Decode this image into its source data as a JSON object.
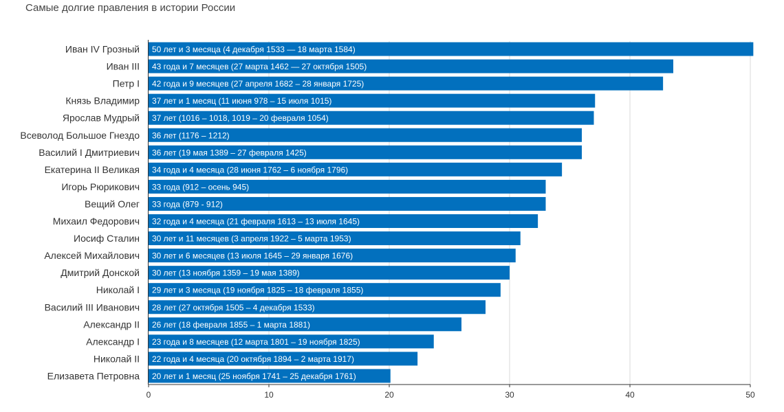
{
  "chart_data": {
    "type": "bar",
    "orientation": "horizontal",
    "title": "Самые долгие правления в истории России",
    "xlabel": "",
    "ylabel": "",
    "xlim": [
      0,
      50
    ],
    "xticks": [
      0,
      10,
      20,
      30,
      40,
      50
    ],
    "grid": true,
    "bar_color": "#0270be",
    "categories": [
      "Иван IV Грозный",
      "Иван III",
      "Петр I",
      "Князь Владимир",
      "Ярослав Мудрый",
      "Всеволод Большое Гнездо",
      "Василий I Дмитриевич",
      "Екатерина II Великая",
      "Игорь Рюрикович",
      "Вещий Олег",
      "Михаил Федорович",
      "Иосиф Сталин",
      "Алексей Михайлович",
      "Дмитрий Донской",
      "Николай I",
      "Василий III Иванович",
      "Александр II",
      "Александр I",
      "Николай II",
      "Елизавета Петровна"
    ],
    "values": [
      50.25,
      43.6,
      42.75,
      37.1,
      37.0,
      36.0,
      36.0,
      34.35,
      33.0,
      33.0,
      32.35,
      30.9,
      30.5,
      30.0,
      29.25,
      28.0,
      26.0,
      23.7,
      22.35,
      20.1
    ],
    "bar_labels": [
      "50 лет и 3 месяца (4 декабря 1533 — 18 марта 1584)",
      "43 года и 7 месяцев (27 марта 1462 — 27 октября 1505)",
      "42 года и 9 месяцев  (27 апреля 1682 – 28 января 1725)",
      "37 лет и 1 месяц  (11 июня 978 – 15 июля 1015)",
      "37 лет (1016 – 1018, 1019 – 20 февраля 1054)",
      "36 лет (1176 – 1212)",
      "36 лет (19 мая 1389 – 27 февраля 1425)",
      "34 года и 4 месяца (28 июня 1762 – 6 ноября 1796)",
      "33 года (912 – осень 945)",
      "33 года (879 - 912)",
      "32 года и 4 месяца (21 февраля 1613 – 13 июля 1645)",
      "30 лет и 11 месяцев (3 апреля 1922 – 5 марта 1953)",
      "30 лет и 6 месяцев (13 июля 1645 – 29 января 1676)",
      "30 лет (13 ноября 1359 – 19 мая 1389)",
      "29 лет и 3 месяца (19 ноября 1825 – 18 февраля 1855)",
      "28 лет (27 октября 1505 – 4 декабря 1533)",
      "26 лет (18 февраля 1855 – 1 марта 1881)",
      "23 года и 8 месяцев (12 марта 1801 – 19 ноября 1825)",
      "22 года и 4 месяца (20 октября 1894 – 2 марта 1917)",
      "20 лет и 1 месяц  (25 ноября 1741 – 25 декабря 1761)"
    ]
  }
}
